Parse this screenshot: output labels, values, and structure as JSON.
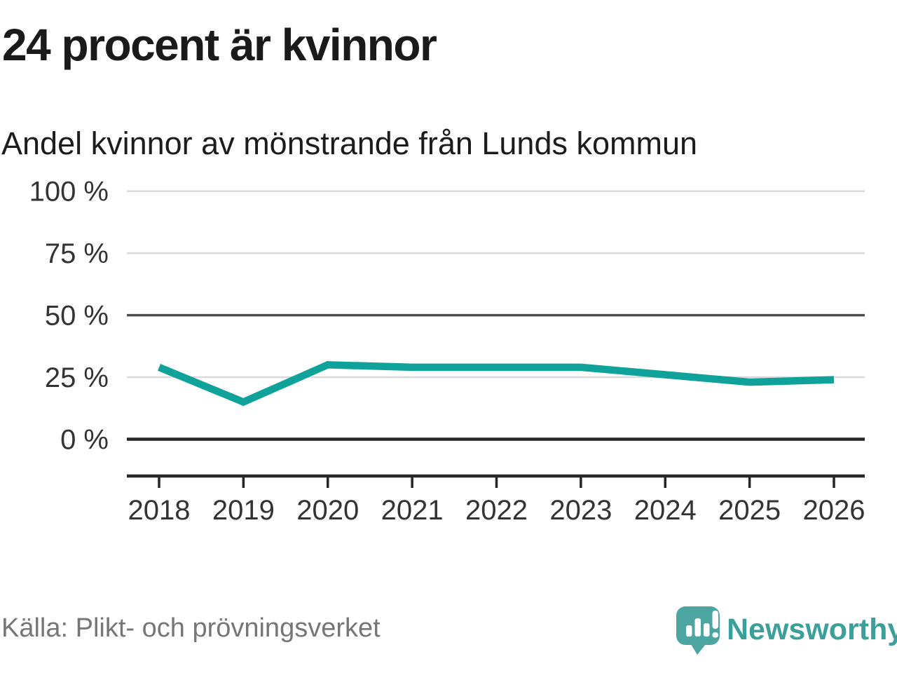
{
  "header": {
    "title": "24 procent är kvinnor",
    "subtitle": "Andel kvinnor av mönstrande från Lunds kommun"
  },
  "chart_data": {
    "type": "line",
    "title": "24 procent är kvinnor",
    "subtitle": "Andel kvinnor av mönstrande från Lunds kommun",
    "x": [
      2018,
      2019,
      2020,
      2021,
      2022,
      2023,
      2024,
      2025,
      2026
    ],
    "series": [
      {
        "name": "Andel kvinnor av mönstrande",
        "values": [
          29,
          15,
          30,
          29,
          29,
          29,
          26,
          23,
          24
        ],
        "color": "#0ea29b"
      }
    ],
    "unit": "%",
    "xlabel": "",
    "ylabel": "",
    "ylim": [
      0,
      100
    ],
    "y_ticks": [
      {
        "label": "0 %",
        "value": 0,
        "emphasis": "dark"
      },
      {
        "label": "25 %",
        "value": 25,
        "emphasis": "light"
      },
      {
        "label": "50 %",
        "value": 50,
        "emphasis": "mid"
      },
      {
        "label": "75 %",
        "value": 75,
        "emphasis": "light"
      },
      {
        "label": "100 %",
        "value": 100,
        "emphasis": "light"
      }
    ],
    "grid": "horizontal",
    "legend": "none"
  },
  "footer": {
    "source": "Källa: Plikt- och prövningsverket",
    "brand": "Newsworthy"
  },
  "colors": {
    "line": "#0ea29b",
    "brand_mark": "#4ba6a1",
    "brand_text": "#3d9f9a",
    "grid_light": "#d9d9d9",
    "grid_mid": "#4d4d4d",
    "grid_dark": "#262626",
    "axis_text": "#333333"
  }
}
